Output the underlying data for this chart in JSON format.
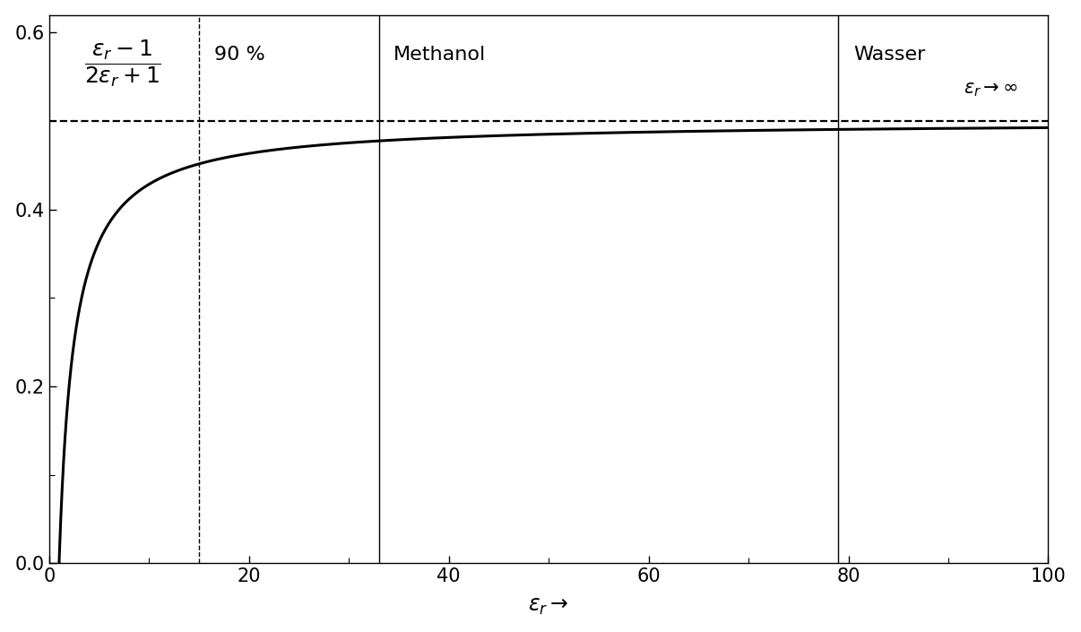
{
  "xlim": [
    0,
    100
  ],
  "ylim": [
    0.0,
    0.62
  ],
  "yticks": [
    0.0,
    0.2,
    0.4,
    0.6
  ],
  "xticks": [
    0,
    20,
    40,
    60,
    80,
    100
  ],
  "asymptote": 0.5,
  "dashed_vline_x": 15,
  "solid_vline_methanol_x": 33,
  "solid_vline_wasser_x": 79,
  "xlabel": "$\\varepsilon_r \\rightarrow$",
  "label_90": "90 %",
  "label_methanol": "Methanol",
  "label_wasser": "Wasser",
  "label_asymptote": "$\\varepsilon_r \\rightarrow\\infty$",
  "formula": "$\\dfrac{\\varepsilon_r - 1}{2\\varepsilon_r + 1}$",
  "line_color": "#000000",
  "background_color": "#ffffff",
  "curve_linewidth": 2.2,
  "vline_linewidth": 1.0,
  "dashed_linewidth": 1.6,
  "fontsize_labels": 17,
  "fontsize_ticks": 15,
  "fontsize_annotations": 16,
  "fontsize_formula": 18
}
